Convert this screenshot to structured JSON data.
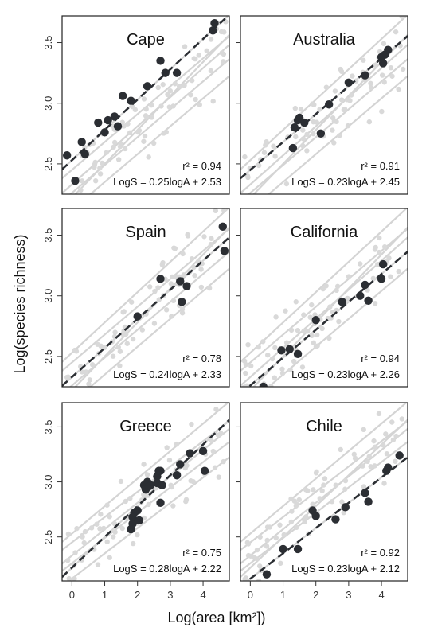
{
  "figure": {
    "xlabel": "Log(area [km²])",
    "ylabel": "Log(species richness)"
  },
  "colors": {
    "highlight": "#2b2e33",
    "background_points": "#d9d9d9",
    "background_lines": "#d4d4d4",
    "fit_line": "#2b2e33"
  },
  "chart_data": [
    {
      "type": "scatter",
      "title": "Cape",
      "r2_text": "r² = 0.94",
      "eq_text": "LogS = 0.25logA + 2.53",
      "slope": 0.25,
      "intercept": 2.53,
      "xlim": [
        -0.3,
        4.8
      ],
      "ylim": [
        2.25,
        3.72
      ],
      "xticks": [
        0,
        1,
        2,
        3,
        4
      ],
      "yticks": [
        2.5,
        3.0,
        3.5
      ],
      "ytick_labels": [
        "2.5",
        "3.0",
        "3.5"
      ],
      "points": [
        [
          -0.15,
          2.57
        ],
        [
          0.1,
          2.36
        ],
        [
          0.3,
          2.68
        ],
        [
          0.4,
          2.58
        ],
        [
          0.8,
          2.84
        ],
        [
          1.0,
          2.76
        ],
        [
          1.1,
          2.86
        ],
        [
          1.3,
          2.89
        ],
        [
          1.4,
          2.81
        ],
        [
          1.55,
          3.06
        ],
        [
          1.8,
          3.02
        ],
        [
          2.3,
          3.14
        ],
        [
          2.7,
          3.35
        ],
        [
          2.85,
          3.25
        ],
        [
          3.2,
          3.25
        ],
        [
          4.3,
          3.6
        ],
        [
          4.35,
          3.66
        ]
      ]
    },
    {
      "type": "scatter",
      "title": "Australia",
      "r2_text": "r² = 0.91",
      "eq_text": "LogS = 0.23logA + 2.45",
      "slope": 0.23,
      "intercept": 2.45,
      "xlim": [
        -0.3,
        4.8
      ],
      "ylim": [
        2.25,
        3.72
      ],
      "xticks": [
        0,
        1,
        2,
        3,
        4
      ],
      "yticks": [
        2.5,
        3.0,
        3.5
      ],
      "points": [
        [
          1.3,
          2.63
        ],
        [
          1.35,
          2.8
        ],
        [
          1.45,
          2.86
        ],
        [
          1.5,
          2.88
        ],
        [
          1.65,
          2.84
        ],
        [
          2.15,
          2.75
        ],
        [
          2.4,
          2.99
        ],
        [
          3.0,
          3.17
        ],
        [
          3.5,
          3.23
        ],
        [
          4.0,
          3.38
        ],
        [
          4.05,
          3.33
        ],
        [
          4.1,
          3.4
        ],
        [
          4.2,
          3.44
        ]
      ]
    },
    {
      "type": "scatter",
      "title": "Spain",
      "r2_text": "r² = 0.78",
      "eq_text": "LogS = 0.24logA + 2.33",
      "slope": 0.24,
      "intercept": 2.33,
      "xlim": [
        -0.3,
        4.8
      ],
      "ylim": [
        2.25,
        3.72
      ],
      "xticks": [
        0,
        1,
        2,
        3,
        4
      ],
      "yticks": [
        2.5,
        3.0,
        3.5
      ],
      "ytick_labels": [
        "2.5",
        "3.0",
        "3.5"
      ],
      "points": [
        [
          2.0,
          2.83
        ],
        [
          2.7,
          3.14
        ],
        [
          3.3,
          3.12
        ],
        [
          3.35,
          2.95
        ],
        [
          3.5,
          3.08
        ],
        [
          4.6,
          3.57
        ],
        [
          4.65,
          3.37
        ]
      ]
    },
    {
      "type": "scatter",
      "title": "California",
      "r2_text": "r² = 0.94",
      "eq_text": "LogS = 0.23logA + 2.26",
      "slope": 0.23,
      "intercept": 2.26,
      "xlim": [
        -0.3,
        4.8
      ],
      "ylim": [
        2.25,
        3.72
      ],
      "xticks": [
        0,
        1,
        2,
        3,
        4
      ],
      "yticks": [
        2.5,
        3.0,
        3.5
      ],
      "points": [
        [
          0.4,
          2.25
        ],
        [
          0.95,
          2.55
        ],
        [
          1.2,
          2.56
        ],
        [
          1.45,
          2.52
        ],
        [
          2.0,
          2.8
        ],
        [
          2.8,
          2.95
        ],
        [
          3.35,
          3.0
        ],
        [
          3.5,
          3.09
        ],
        [
          3.6,
          2.96
        ],
        [
          4.0,
          3.14
        ],
        [
          4.05,
          3.26
        ]
      ]
    },
    {
      "type": "scatter",
      "title": "Greece",
      "r2_text": "r² = 0.75",
      "eq_text": "LogS = 0.28logA + 2.22",
      "slope": 0.28,
      "intercept": 2.22,
      "xlim": [
        -0.3,
        4.8
      ],
      "ylim": [
        2.1,
        3.72
      ],
      "xticks": [
        0,
        1,
        2,
        3,
        4
      ],
      "yticks": [
        2.5,
        3.0,
        3.5
      ],
      "xtick_labels": [
        "0",
        "1",
        "2",
        "3",
        "4"
      ],
      "ytick_labels": [
        "2.5",
        "3.0",
        "3.5"
      ],
      "points": [
        [
          1.8,
          2.57
        ],
        [
          1.85,
          2.62
        ],
        [
          1.85,
          2.68
        ],
        [
          1.9,
          2.72
        ],
        [
          2.0,
          2.74
        ],
        [
          2.05,
          2.65
        ],
        [
          2.2,
          2.97
        ],
        [
          2.25,
          2.93
        ],
        [
          2.3,
          3.0
        ],
        [
          2.35,
          2.96
        ],
        [
          2.4,
          2.97
        ],
        [
          2.6,
          3.05
        ],
        [
          2.6,
          2.99
        ],
        [
          2.65,
          3.1
        ],
        [
          2.7,
          3.1
        ],
        [
          2.7,
          2.81
        ],
        [
          2.75,
          2.97
        ],
        [
          3.2,
          3.06
        ],
        [
          3.3,
          3.16
        ],
        [
          3.6,
          3.26
        ],
        [
          4.0,
          3.28
        ],
        [
          4.05,
          3.1
        ]
      ]
    },
    {
      "type": "scatter",
      "title": "Chile",
      "r2_text": "r² = 0.92",
      "eq_text": "LogS = 0.23logA + 2.12",
      "slope": 0.23,
      "intercept": 2.12,
      "xlim": [
        -0.3,
        4.8
      ],
      "ylim": [
        2.1,
        3.72
      ],
      "xticks": [
        0,
        1,
        2,
        3,
        4
      ],
      "yticks": [
        2.5,
        3.0,
        3.5
      ],
      "xtick_labels": [
        "0",
        "1",
        "2",
        "3",
        "4"
      ],
      "points": [
        [
          0.5,
          2.16
        ],
        [
          1.0,
          2.39
        ],
        [
          1.45,
          2.39
        ],
        [
          1.9,
          2.74
        ],
        [
          2.0,
          2.69
        ],
        [
          2.6,
          2.66
        ],
        [
          2.9,
          2.77
        ],
        [
          3.5,
          2.9
        ],
        [
          3.6,
          2.82
        ],
        [
          4.15,
          3.1
        ],
        [
          4.2,
          3.13
        ],
        [
          4.55,
          3.24
        ]
      ]
    }
  ]
}
